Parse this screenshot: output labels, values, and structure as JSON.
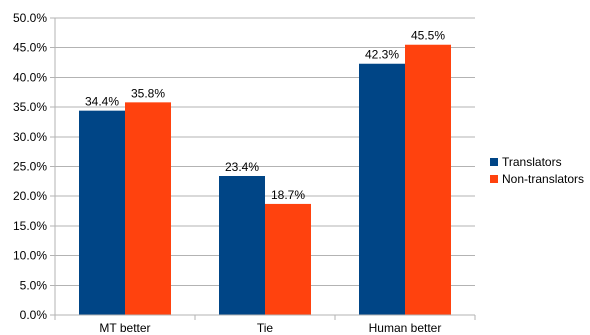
{
  "chart_data": {
    "type": "bar",
    "categories": [
      "MT better",
      "Tie",
      "Human better"
    ],
    "series": [
      {
        "name": "Translators",
        "values": [
          34.4,
          23.4,
          42.3
        ],
        "color": "#004586"
      },
      {
        "name": "Non-translators",
        "values": [
          35.8,
          18.7,
          45.5
        ],
        "color": "#ff420e"
      }
    ],
    "data_labels": [
      [
        "34.4%",
        "23.4%",
        "42.3%"
      ],
      [
        "35.8%",
        "18.7%",
        "45.5%"
      ]
    ],
    "y_ticks": [
      "0.0%",
      "5.0%",
      "10.0%",
      "15.0%",
      "20.0%",
      "25.0%",
      "30.0%",
      "35.0%",
      "40.0%",
      "45.0%",
      "50.0%"
    ],
    "ylim": [
      0,
      50
    ],
    "y_step": 5,
    "grid": true,
    "legend_position": "right",
    "title": "",
    "xlabel": "",
    "ylabel": ""
  }
}
